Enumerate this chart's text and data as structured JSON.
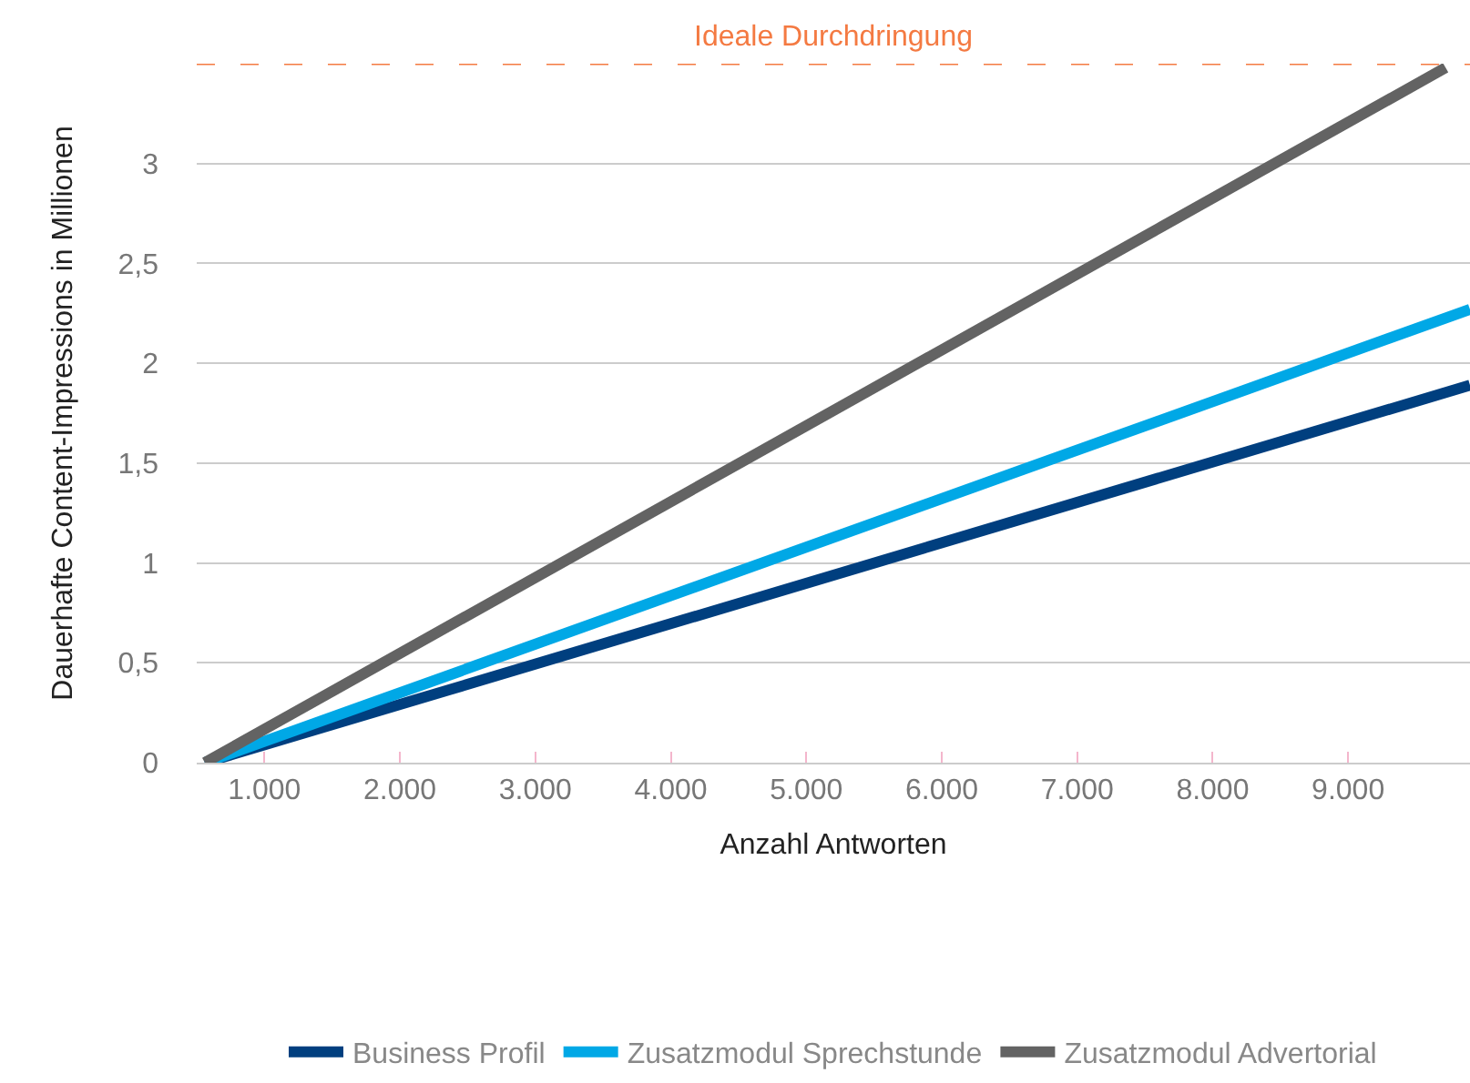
{
  "chart_data": {
    "type": "line",
    "xlabel": "Anzahl Antworten",
    "ylabel": "Dauerhafte Content-Impressions in Millionen",
    "series": [
      {
        "name": "Business Profil",
        "color": "#003f7f",
        "x": [
          560,
          9900
        ],
        "values": [
          0,
          1.89
        ]
      },
      {
        "name": "Zusatzmodul Sprechstunde",
        "color": "#00a8e6",
        "x": [
          560,
          9900
        ],
        "values": [
          0,
          2.27
        ]
      },
      {
        "name": "Zusatzmodul Advertorial",
        "color": "#636363",
        "x": [
          560,
          9720
        ],
        "values": [
          0,
          3.48
        ]
      }
    ],
    "xlim": [
      500,
      9900
    ],
    "ylim": [
      0,
      3.5
    ],
    "xticks": [
      {
        "value": 1000,
        "label": "1.000"
      },
      {
        "value": 2000,
        "label": "2.000"
      },
      {
        "value": 3000,
        "label": "3.000"
      },
      {
        "value": 4000,
        "label": "4.000"
      },
      {
        "value": 5000,
        "label": "5.000"
      },
      {
        "value": 6000,
        "label": "6.000"
      },
      {
        "value": 7000,
        "label": "7.000"
      },
      {
        "value": 8000,
        "label": "8.000"
      },
      {
        "value": 9000,
        "label": "9.000"
      }
    ],
    "yticks": [
      0,
      {
        "value": 0.5,
        "label": "0,5"
      },
      1,
      {
        "value": 1.5,
        "label": "1,5"
      },
      2,
      {
        "value": 2.5,
        "label": "2,5"
      },
      3
    ],
    "ref_lines": [
      {
        "axis": "y",
        "value": 3.5,
        "label": "Ideale Durchdringung",
        "color": "#f47a42",
        "line_style": "dashed"
      }
    ],
    "grid": "y",
    "legend": "bottom",
    "marker": "none",
    "line_style": "solid"
  }
}
